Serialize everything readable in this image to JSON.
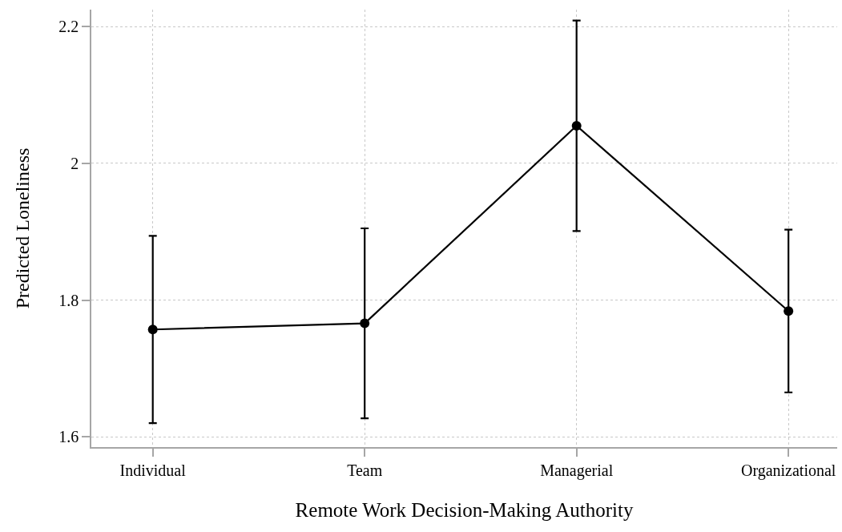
{
  "chart_data": {
    "type": "line",
    "xlabel": "Remote Work Decision-Making Authority",
    "ylabel": "Predicted Loneliness",
    "categories": [
      "Individual",
      "Team",
      "Managerial",
      "Organizational"
    ],
    "series": [
      {
        "color": "#000000",
        "values": [
          1.757,
          1.766,
          2.055,
          1.784
        ],
        "errors": [
          0.137,
          0.139,
          0.154,
          0.119
        ]
      }
    ],
    "ylim": [
      1.585,
      2.225
    ],
    "yticks": [
      1.6,
      1.8,
      2,
      2.2
    ],
    "grid": true,
    "marker": "circle",
    "line_style": "solid"
  }
}
